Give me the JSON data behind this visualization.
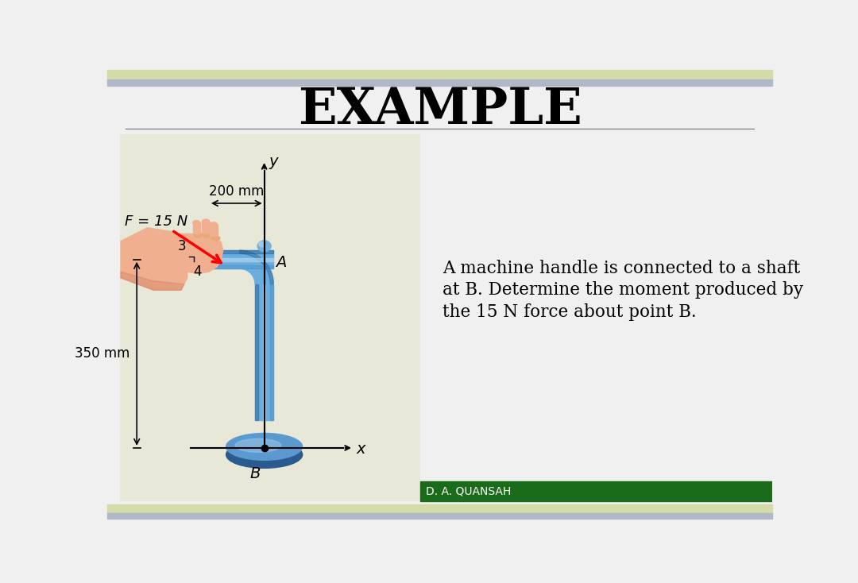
{
  "title": "EXAMPLE",
  "title_fontsize": 46,
  "title_fontweight": "bold",
  "bg_color": "#f0f0f0",
  "top_bar_color1": "#d4dba8",
  "top_bar_color2": "#b0b8c8",
  "diagram_bg": "#e8e8d8",
  "green_bar_color": "#1a6b1a",
  "text_block_line1": "A machine handle is connected to a shaft",
  "text_block_line2": "at B. Determine the moment produced by",
  "text_block_line3": "the 15 N force about point B.",
  "text_fontsize": 15.5,
  "label_F": "F = 15 N",
  "label_200": "200 mm",
  "label_350": "350 mm",
  "label_3": "3",
  "label_4": "4",
  "label_A": "A",
  "label_B": "B",
  "label_x": "x",
  "label_y": "y",
  "author": "D. A. QUANSAH",
  "author_color": "#ffffff",
  "author_fontsize": 10,
  "handle_color": "#6aaee0",
  "handle_dark": "#3a7ab8",
  "handle_light": "#b8d8f0",
  "handle_darkest": "#1a4a80",
  "disk_color": "#5a9ad0",
  "disk_light": "#a0c8e8",
  "disk_dark": "#2a5a90",
  "hand_color": "#f0b090",
  "hand_shadow": "#d08060"
}
